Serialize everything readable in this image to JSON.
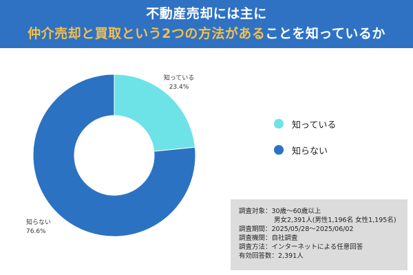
{
  "header": {
    "line1": "不動産売却には主に",
    "line2_highlight": "仲介売却と買取という2つの方法がある",
    "line2_rest": "ことを知っているか"
  },
  "colors": {
    "header_bg": "#2f72c4",
    "highlight": "#f5c04a",
    "known": "#6de3e8",
    "unknown": "#2b72c2",
    "survey_bg": "#dcdcdc"
  },
  "chart_data": {
    "type": "pie",
    "donut": true,
    "title": "不動産売却には主に仲介売却と買取という2つの方法があることを知っているか",
    "categories": [
      "知っている",
      "知らない"
    ],
    "values": [
      23.4,
      76.6
    ],
    "value_labels": [
      "23.4%",
      "76.6%"
    ],
    "start_angle_deg": 0,
    "direction": "clockwise",
    "legend_position": "right"
  },
  "legend": [
    {
      "label": "知っている",
      "color": "#6de3e8"
    },
    {
      "label": "知らない",
      "color": "#2b72c2"
    }
  ],
  "survey": {
    "target_label": "調査対象：",
    "target_value": "30歳〜60歳以上",
    "target_value2": "男女2,391人(男性1,196名 女性1,195名)",
    "period_label": "調査期間：",
    "period_value": "2025/05/28〜2025/06/02",
    "org_label": "調査機関：",
    "org_value": "自社調査",
    "method_label": "調査方法：",
    "method_value": "インターネットによる任意回答",
    "responses_label": "有効回答数：",
    "responses_value": "2,391人"
  }
}
